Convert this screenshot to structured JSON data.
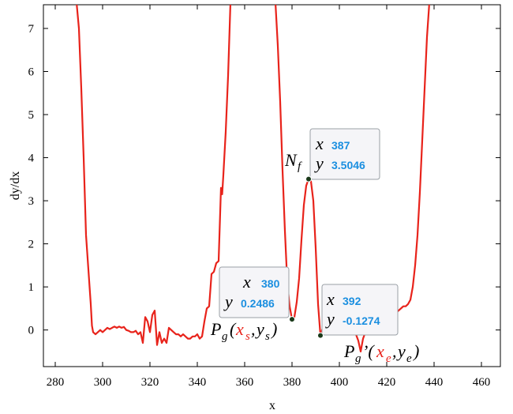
{
  "chart_data": {
    "type": "line",
    "xlabel": "x",
    "ylabel": "dy/dx",
    "xlim": [
      275,
      468
    ],
    "ylim": [
      -0.85,
      7.55
    ],
    "x_ticks": [
      280,
      300,
      320,
      340,
      360,
      380,
      400,
      420,
      440,
      460
    ],
    "y_ticks": [
      0,
      1,
      2,
      3,
      4,
      5,
      6,
      7
    ],
    "grid": false,
    "line_color": "#e8231b",
    "series": [
      {
        "color": "#e8231b",
        "points": [
          [
            289,
            7.6
          ],
          [
            290,
            7.0
          ],
          [
            291,
            5.6
          ],
          [
            292,
            4.0
          ],
          [
            293,
            2.2
          ],
          [
            294,
            1.4
          ],
          [
            295,
            0.6
          ],
          [
            295.5,
            0.1
          ],
          [
            296,
            -0.05
          ],
          [
            297,
            -0.1
          ],
          [
            298,
            -0.05
          ],
          [
            299,
            0.0
          ],
          [
            300,
            -0.05
          ],
          [
            301,
            0.0
          ],
          [
            302,
            0.05
          ],
          [
            303,
            0.02
          ],
          [
            304,
            0.05
          ],
          [
            305,
            0.08
          ],
          [
            306,
            0.05
          ],
          [
            307,
            0.08
          ],
          [
            308,
            0.05
          ],
          [
            309,
            0.07
          ],
          [
            310,
            0.0
          ],
          [
            311,
            -0.02
          ],
          [
            312,
            -0.05
          ],
          [
            313,
            -0.05
          ],
          [
            314,
            -0.02
          ],
          [
            315,
            -0.1
          ],
          [
            316,
            -0.05
          ],
          [
            317,
            -0.3
          ],
          [
            318,
            0.3
          ],
          [
            319,
            0.2
          ],
          [
            320,
            -0.05
          ],
          [
            321,
            0.35
          ],
          [
            322,
            0.45
          ],
          [
            323,
            -0.35
          ],
          [
            324,
            -0.05
          ],
          [
            325,
            -0.3
          ],
          [
            326,
            -0.2
          ],
          [
            327,
            -0.3
          ],
          [
            328,
            0.05
          ],
          [
            329,
            0.0
          ],
          [
            330,
            -0.05
          ],
          [
            331,
            -0.1
          ],
          [
            332,
            -0.1
          ],
          [
            333,
            -0.15
          ],
          [
            334,
            -0.1
          ],
          [
            335,
            -0.15
          ],
          [
            336,
            -0.2
          ],
          [
            337,
            -0.2
          ],
          [
            338,
            -0.15
          ],
          [
            339,
            -0.15
          ],
          [
            340,
            -0.1
          ],
          [
            341,
            -0.2
          ],
          [
            342,
            -0.15
          ],
          [
            343,
            0.2
          ],
          [
            344,
            0.5
          ],
          [
            345,
            0.55
          ],
          [
            346,
            1.3
          ],
          [
            347,
            1.35
          ],
          [
            348,
            1.55
          ],
          [
            349,
            1.6
          ],
          [
            350,
            3.3
          ],
          [
            350.5,
            3.15
          ],
          [
            351,
            3.6
          ],
          [
            352,
            4.6
          ],
          [
            353,
            5.9
          ],
          [
            354,
            7.6
          ]
        ]
      },
      {
        "color": "#e8231b",
        "points": [
          [
            373,
            7.6
          ],
          [
            374,
            6.6
          ],
          [
            375,
            5.3
          ],
          [
            376,
            3.7
          ],
          [
            377,
            2.3
          ],
          [
            378,
            1.1
          ],
          [
            379,
            0.55
          ],
          [
            380,
            0.2486
          ],
          [
            381,
            0.3
          ],
          [
            382,
            0.65
          ],
          [
            383,
            1.2
          ],
          [
            384,
            2.1
          ],
          [
            385,
            2.9
          ],
          [
            386,
            3.35
          ],
          [
            387,
            3.5046
          ],
          [
            388,
            3.45
          ],
          [
            389,
            3.0
          ],
          [
            390,
            1.9
          ],
          [
            391,
            0.6
          ],
          [
            392,
            -0.1274
          ],
          [
            393,
            0.05
          ],
          [
            394,
            -0.05
          ],
          [
            395,
            0.0
          ],
          [
            396,
            -0.1
          ],
          [
            397,
            -0.05
          ],
          [
            398,
            -0.1
          ],
          [
            399,
            0.02
          ],
          [
            400,
            0.15
          ],
          [
            401,
            0.1
          ],
          [
            402,
            0.05
          ],
          [
            403,
            0.0
          ],
          [
            404,
            0.05
          ],
          [
            405,
            0.0
          ],
          [
            406,
            -0.05
          ],
          [
            407,
            -0.1
          ],
          [
            408,
            -0.25
          ],
          [
            409,
            -0.5
          ],
          [
            410,
            -0.2
          ],
          [
            411,
            -0.05
          ],
          [
            412,
            -0.1
          ],
          [
            413,
            -0.05
          ],
          [
            414,
            0.0
          ],
          [
            415,
            0.02
          ],
          [
            416,
            0.0
          ],
          [
            417,
            -0.02
          ],
          [
            418,
            0.0
          ],
          [
            419,
            0.02
          ],
          [
            420,
            0.05
          ],
          [
            421,
            0.15
          ],
          [
            422,
            0.2
          ],
          [
            423,
            0.3
          ],
          [
            424,
            0.4
          ],
          [
            425,
            0.45
          ],
          [
            426,
            0.5
          ],
          [
            427,
            0.55
          ],
          [
            428,
            0.55
          ],
          [
            429,
            0.6
          ],
          [
            430,
            0.7
          ],
          [
            431,
            1.0
          ],
          [
            432,
            1.5
          ],
          [
            433,
            2.2
          ],
          [
            434,
            3.2
          ],
          [
            435,
            4.4
          ],
          [
            436,
            5.6
          ],
          [
            437,
            6.8
          ],
          [
            438,
            7.6
          ]
        ]
      }
    ],
    "datatips": [
      {
        "x_label": "x",
        "x_value": "387",
        "y_label": "y",
        "y_value": "3.5046",
        "point": [
          387,
          3.5046
        ]
      },
      {
        "x_label": "x",
        "x_value": "380",
        "y_label": "y",
        "y_value": "0.2486",
        "point": [
          380,
          0.2486
        ]
      },
      {
        "x_label": "x",
        "x_value": "392",
        "y_label": "y",
        "y_value": "-0.1274",
        "point": [
          392,
          -0.1274
        ]
      }
    ],
    "annotations": {
      "nf": {
        "main": "N",
        "sub": "f"
      },
      "pg": {
        "main": "P",
        "sub_g": "g",
        "open": "(",
        "xs_main": "x",
        "xs_sub": "s",
        "comma": ",",
        "ys_main": "y",
        "ys_sub": "s",
        "close": ")"
      },
      "pg_prime": {
        "main": "P",
        "sub_g": "g",
        "prime_open": "’(",
        "xe_main": "x",
        "xe_sub": "e",
        "comma": ",",
        "ye_main": "y",
        "ye_sub": "e",
        "close": ")"
      }
    },
    "colors": {
      "value_blue": "#1b8fe0",
      "annotation_red": "#e8231b",
      "marker": "#1a3a1a"
    }
  }
}
